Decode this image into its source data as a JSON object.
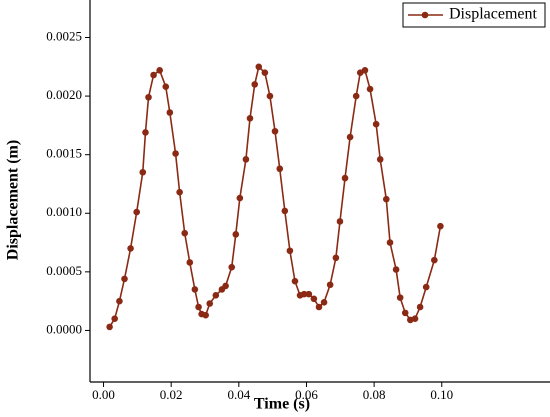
{
  "chart_data": {
    "type": "line",
    "xlabel": "Time (s)",
    "ylabel": "Displacement (m)",
    "x": [
      0.0018,
      0.0033,
      0.0047,
      0.0062,
      0.008,
      0.0098,
      0.0116,
      0.0124,
      0.0133,
      0.0148,
      0.0166,
      0.0184,
      0.0196,
      0.0213,
      0.0225,
      0.024,
      0.0255,
      0.027,
      0.0281,
      0.029,
      0.0302,
      0.0314,
      0.0332,
      0.035,
      0.0361,
      0.0379,
      0.0391,
      0.0403,
      0.0421,
      0.0433,
      0.0447,
      0.0459,
      0.0477,
      0.0492,
      0.0507,
      0.0521,
      0.0536,
      0.0551,
      0.0566,
      0.0581,
      0.0593,
      0.0607,
      0.0622,
      0.0637,
      0.0652,
      0.067,
      0.0687,
      0.0699,
      0.0714,
      0.0729,
      0.0747,
      0.0759,
      0.0773,
      0.0788,
      0.0806,
      0.0818,
      0.0836,
      0.0847,
      0.0865,
      0.0877,
      0.0892,
      0.0907,
      0.0921,
      0.0936,
      0.0954,
      0.0978,
      0.0996
    ],
    "series": [
      {
        "name": "Displacement",
        "color": "#8b2a14",
        "values": [
          3e-05,
          0.0001,
          0.00025,
          0.00044,
          0.0007,
          0.00101,
          0.00135,
          0.00169,
          0.00199,
          0.00218,
          0.00222,
          0.00208,
          0.00186,
          0.00151,
          0.00118,
          0.00083,
          0.00058,
          0.00035,
          0.0002,
          0.00014,
          0.00013,
          0.00023,
          0.0003,
          0.00035,
          0.00038,
          0.00054,
          0.00082,
          0.00113,
          0.00146,
          0.00181,
          0.0021,
          0.00225,
          0.0022,
          0.002,
          0.0017,
          0.00138,
          0.00102,
          0.00068,
          0.00042,
          0.0003,
          0.00031,
          0.00031,
          0.00027,
          0.0002,
          0.00024,
          0.00039,
          0.00062,
          0.00093,
          0.0013,
          0.00165,
          0.002,
          0.0022,
          0.00222,
          0.00206,
          0.00176,
          0.00146,
          0.00112,
          0.00075,
          0.00052,
          0.00028,
          0.00015,
          9e-05,
          0.0001,
          0.0002,
          0.00037,
          0.0006,
          0.00089
        ]
      }
    ],
    "xlim": [
      -0.004,
      0.132
    ],
    "xticks": [
      {
        "value": 0,
        "label": "0.00"
      },
      0.02,
      0.04,
      0.06,
      0.08,
      {
        "value": 0.1,
        "label": "0.10"
      }
    ],
    "ylim": [
      -0.00044,
      0.00282
    ],
    "yticks": [
      {
        "value": 0,
        "label": "0.0000"
      },
      0.0005,
      {
        "value": 0.001,
        "label": "0.0010"
      },
      0.0015,
      {
        "value": 0.002,
        "label": "0.0020"
      },
      0.0025
    ],
    "legend": "top-right",
    "grid": false
  }
}
